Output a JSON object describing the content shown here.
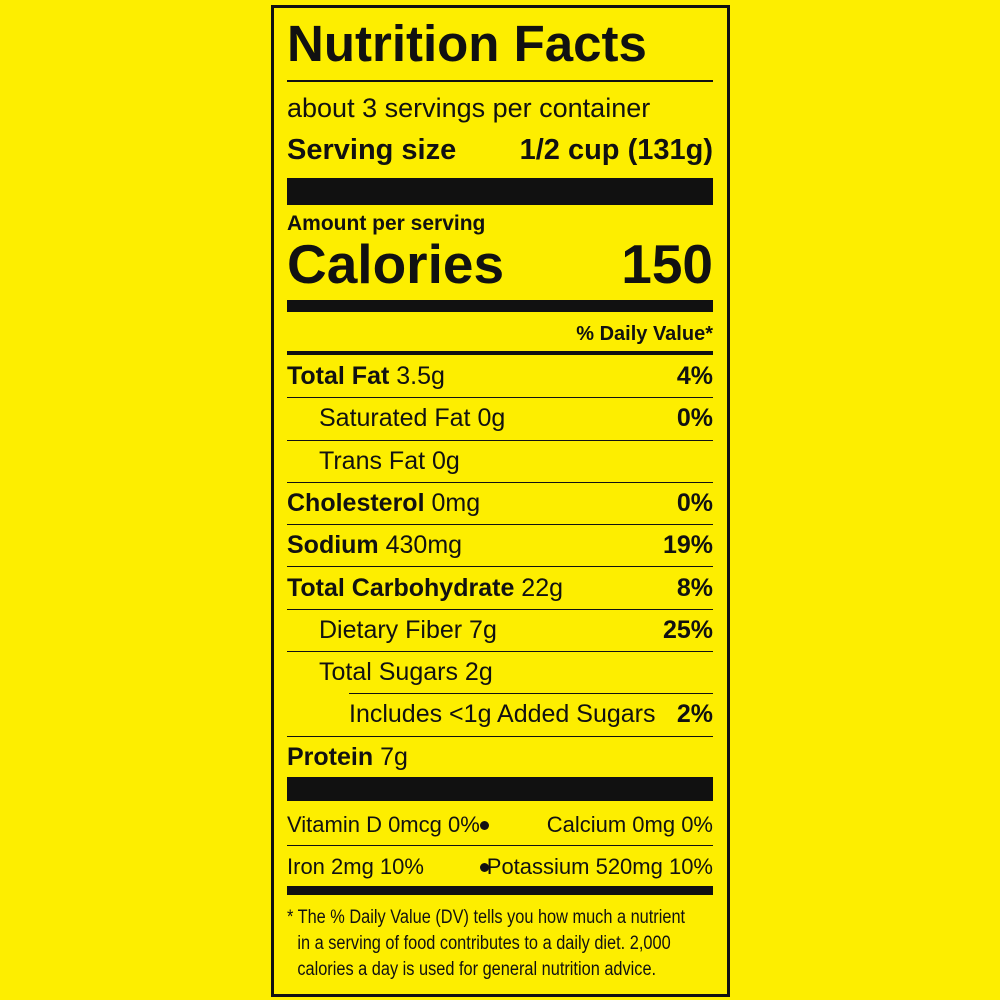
{
  "title": "Nutrition Facts",
  "servings": "about 3 servings per container",
  "serving_size": {
    "label": "Serving size",
    "value": "1/2 cup (131g)"
  },
  "amount_per_serving": "Amount per serving",
  "calories": {
    "label": "Calories",
    "value": "150"
  },
  "daily_value_header": "% Daily Value*",
  "nutrients": [
    {
      "name": "Total Fat",
      "amount": "3.5g",
      "dv": "4%"
    },
    {
      "name": "Saturated Fat",
      "amount": "0g",
      "dv": "0%"
    },
    {
      "name": "Trans Fat",
      "amount": "0g"
    },
    {
      "name": "Cholesterol",
      "amount": "0mg",
      "dv": "0%"
    },
    {
      "name": "Sodium",
      "amount": "430mg",
      "dv": "19%"
    },
    {
      "name": "Total Carbohydrate",
      "amount": "22g",
      "dv": "8%"
    },
    {
      "name": "Dietary Fiber",
      "amount": "7g",
      "dv": "25%"
    },
    {
      "name": "Total Sugars",
      "amount": "2g"
    },
    {
      "name": "Includes <1g Added Sugars",
      "dv": "2%"
    },
    {
      "name": "Protein",
      "amount": "7g"
    }
  ],
  "vitamins": [
    {
      "left": "Vitamin D 0mcg 0%",
      "right": "Calcium 0mg 0%"
    },
    {
      "left": "Iron 2mg 10%",
      "right": "Potassium 520mg 10%"
    }
  ],
  "footnote": [
    "* The % Daily Value (DV) tells you how much a nutrient",
    "in a serving of food contributes to a daily diet. 2,000",
    "calories a day is used for general nutrition advice."
  ]
}
